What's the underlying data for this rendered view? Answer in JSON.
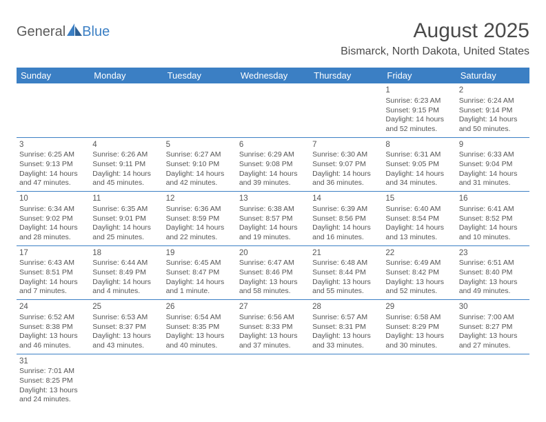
{
  "logo": {
    "word1": "General",
    "word2": "Blue"
  },
  "colors": {
    "accent": "#3b7fc4",
    "text": "#4a4a4a",
    "bg": "#ffffff"
  },
  "title": "August 2025",
  "location": "Bismarck, North Dakota, United States",
  "daysOfWeek": [
    "Sunday",
    "Monday",
    "Tuesday",
    "Wednesday",
    "Thursday",
    "Friday",
    "Saturday"
  ],
  "weeks": [
    [
      {
        "blank": true
      },
      {
        "blank": true
      },
      {
        "blank": true
      },
      {
        "blank": true
      },
      {
        "blank": true
      },
      {
        "num": "1",
        "sunrise": "Sunrise: 6:23 AM",
        "sunset": "Sunset: 9:15 PM",
        "day1": "Daylight: 14 hours",
        "day2": "and 52 minutes."
      },
      {
        "num": "2",
        "sunrise": "Sunrise: 6:24 AM",
        "sunset": "Sunset: 9:14 PM",
        "day1": "Daylight: 14 hours",
        "day2": "and 50 minutes."
      }
    ],
    [
      {
        "num": "3",
        "sunrise": "Sunrise: 6:25 AM",
        "sunset": "Sunset: 9:13 PM",
        "day1": "Daylight: 14 hours",
        "day2": "and 47 minutes."
      },
      {
        "num": "4",
        "sunrise": "Sunrise: 6:26 AM",
        "sunset": "Sunset: 9:11 PM",
        "day1": "Daylight: 14 hours",
        "day2": "and 45 minutes."
      },
      {
        "num": "5",
        "sunrise": "Sunrise: 6:27 AM",
        "sunset": "Sunset: 9:10 PM",
        "day1": "Daylight: 14 hours",
        "day2": "and 42 minutes."
      },
      {
        "num": "6",
        "sunrise": "Sunrise: 6:29 AM",
        "sunset": "Sunset: 9:08 PM",
        "day1": "Daylight: 14 hours",
        "day2": "and 39 minutes."
      },
      {
        "num": "7",
        "sunrise": "Sunrise: 6:30 AM",
        "sunset": "Sunset: 9:07 PM",
        "day1": "Daylight: 14 hours",
        "day2": "and 36 minutes."
      },
      {
        "num": "8",
        "sunrise": "Sunrise: 6:31 AM",
        "sunset": "Sunset: 9:05 PM",
        "day1": "Daylight: 14 hours",
        "day2": "and 34 minutes."
      },
      {
        "num": "9",
        "sunrise": "Sunrise: 6:33 AM",
        "sunset": "Sunset: 9:04 PM",
        "day1": "Daylight: 14 hours",
        "day2": "and 31 minutes."
      }
    ],
    [
      {
        "num": "10",
        "sunrise": "Sunrise: 6:34 AM",
        "sunset": "Sunset: 9:02 PM",
        "day1": "Daylight: 14 hours",
        "day2": "and 28 minutes."
      },
      {
        "num": "11",
        "sunrise": "Sunrise: 6:35 AM",
        "sunset": "Sunset: 9:01 PM",
        "day1": "Daylight: 14 hours",
        "day2": "and 25 minutes."
      },
      {
        "num": "12",
        "sunrise": "Sunrise: 6:36 AM",
        "sunset": "Sunset: 8:59 PM",
        "day1": "Daylight: 14 hours",
        "day2": "and 22 minutes."
      },
      {
        "num": "13",
        "sunrise": "Sunrise: 6:38 AM",
        "sunset": "Sunset: 8:57 PM",
        "day1": "Daylight: 14 hours",
        "day2": "and 19 minutes."
      },
      {
        "num": "14",
        "sunrise": "Sunrise: 6:39 AM",
        "sunset": "Sunset: 8:56 PM",
        "day1": "Daylight: 14 hours",
        "day2": "and 16 minutes."
      },
      {
        "num": "15",
        "sunrise": "Sunrise: 6:40 AM",
        "sunset": "Sunset: 8:54 PM",
        "day1": "Daylight: 14 hours",
        "day2": "and 13 minutes."
      },
      {
        "num": "16",
        "sunrise": "Sunrise: 6:41 AM",
        "sunset": "Sunset: 8:52 PM",
        "day1": "Daylight: 14 hours",
        "day2": "and 10 minutes."
      }
    ],
    [
      {
        "num": "17",
        "sunrise": "Sunrise: 6:43 AM",
        "sunset": "Sunset: 8:51 PM",
        "day1": "Daylight: 14 hours",
        "day2": "and 7 minutes."
      },
      {
        "num": "18",
        "sunrise": "Sunrise: 6:44 AM",
        "sunset": "Sunset: 8:49 PM",
        "day1": "Daylight: 14 hours",
        "day2": "and 4 minutes."
      },
      {
        "num": "19",
        "sunrise": "Sunrise: 6:45 AM",
        "sunset": "Sunset: 8:47 PM",
        "day1": "Daylight: 14 hours",
        "day2": "and 1 minute."
      },
      {
        "num": "20",
        "sunrise": "Sunrise: 6:47 AM",
        "sunset": "Sunset: 8:46 PM",
        "day1": "Daylight: 13 hours",
        "day2": "and 58 minutes."
      },
      {
        "num": "21",
        "sunrise": "Sunrise: 6:48 AM",
        "sunset": "Sunset: 8:44 PM",
        "day1": "Daylight: 13 hours",
        "day2": "and 55 minutes."
      },
      {
        "num": "22",
        "sunrise": "Sunrise: 6:49 AM",
        "sunset": "Sunset: 8:42 PM",
        "day1": "Daylight: 13 hours",
        "day2": "and 52 minutes."
      },
      {
        "num": "23",
        "sunrise": "Sunrise: 6:51 AM",
        "sunset": "Sunset: 8:40 PM",
        "day1": "Daylight: 13 hours",
        "day2": "and 49 minutes."
      }
    ],
    [
      {
        "num": "24",
        "sunrise": "Sunrise: 6:52 AM",
        "sunset": "Sunset: 8:38 PM",
        "day1": "Daylight: 13 hours",
        "day2": "and 46 minutes."
      },
      {
        "num": "25",
        "sunrise": "Sunrise: 6:53 AM",
        "sunset": "Sunset: 8:37 PM",
        "day1": "Daylight: 13 hours",
        "day2": "and 43 minutes."
      },
      {
        "num": "26",
        "sunrise": "Sunrise: 6:54 AM",
        "sunset": "Sunset: 8:35 PM",
        "day1": "Daylight: 13 hours",
        "day2": "and 40 minutes."
      },
      {
        "num": "27",
        "sunrise": "Sunrise: 6:56 AM",
        "sunset": "Sunset: 8:33 PM",
        "day1": "Daylight: 13 hours",
        "day2": "and 37 minutes."
      },
      {
        "num": "28",
        "sunrise": "Sunrise: 6:57 AM",
        "sunset": "Sunset: 8:31 PM",
        "day1": "Daylight: 13 hours",
        "day2": "and 33 minutes."
      },
      {
        "num": "29",
        "sunrise": "Sunrise: 6:58 AM",
        "sunset": "Sunset: 8:29 PM",
        "day1": "Daylight: 13 hours",
        "day2": "and 30 minutes."
      },
      {
        "num": "30",
        "sunrise": "Sunrise: 7:00 AM",
        "sunset": "Sunset: 8:27 PM",
        "day1": "Daylight: 13 hours",
        "day2": "and 27 minutes."
      }
    ],
    [
      {
        "num": "31",
        "sunrise": "Sunrise: 7:01 AM",
        "sunset": "Sunset: 8:25 PM",
        "day1": "Daylight: 13 hours",
        "day2": "and 24 minutes."
      },
      {
        "blank": true
      },
      {
        "blank": true
      },
      {
        "blank": true
      },
      {
        "blank": true
      },
      {
        "blank": true
      },
      {
        "blank": true
      }
    ]
  ]
}
